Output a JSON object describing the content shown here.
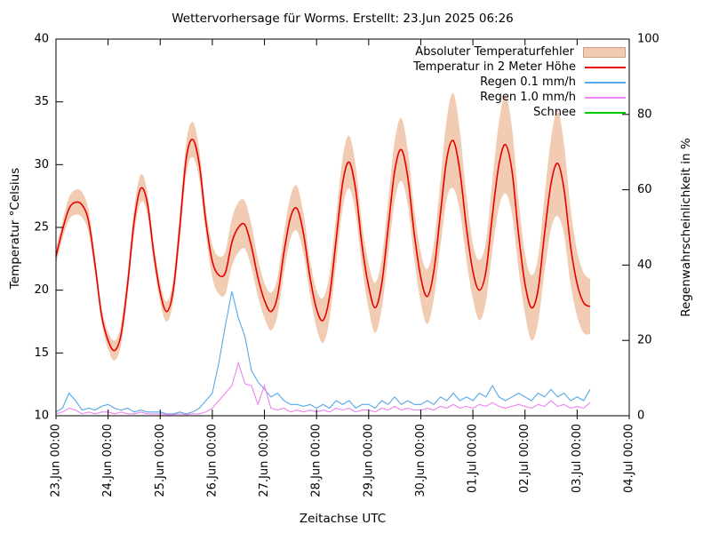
{
  "chart_data": {
    "type": "line",
    "title": "Wettervorhersage für Worms. Erstellt: 23.Jun 2025 06:26",
    "xlabel": "Zeitachse UTC",
    "ylabel_left": "Temperatur °Celsius",
    "ylabel_right": "Regenwahrscheinlichkeit in %",
    "ylim_left": [
      10,
      40
    ],
    "ylim_right": [
      0,
      100
    ],
    "y_ticks_left": [
      10,
      15,
      20,
      25,
      30,
      35,
      40
    ],
    "y_ticks_right": [
      0,
      20,
      40,
      60,
      80,
      100
    ],
    "x_tick_labels": [
      "23.Jun 00:00",
      "24.Jun 00:00",
      "25.Jun 00:00",
      "26.Jun 00:00",
      "27.Jun 00:00",
      "28.Jun 00:00",
      "29.Jun 00:00",
      "30.Jun 00:00",
      "01.Jul 00:00",
      "02.Jul 00:00",
      "03.Jul 00:00",
      "04.Jul 00:00"
    ],
    "x_span_days": 11,
    "step_hours": 3,
    "grid": "off",
    "legend_position": "top-right-inside",
    "legend": [
      "Absoluter Temperaturfehler",
      "Temperatur in 2 Meter Höhe",
      "Regen 0.1 mm/h",
      "Regen 1.0 mm/h",
      "Schnee"
    ],
    "series": {
      "band": {
        "label": "Absoluter Temperaturfehler",
        "fill": "#f2cbb3",
        "border": "#cf9f7f",
        "err_values": [
          0.6,
          0.7,
          0.9,
          1.0,
          1.0,
          0.9,
          0.7,
          0.6,
          0.7,
          0.8,
          0.8,
          0.9,
          1.0,
          1.1,
          0.9,
          0.8,
          0.8,
          0.8,
          0.9,
          1.1,
          1.3,
          1.4,
          1.2,
          1.0,
          1.3,
          1.5,
          1.7,
          1.9,
          2.0,
          1.9,
          1.7,
          1.5,
          1.4,
          1.5,
          1.5,
          1.6,
          1.7,
          1.8,
          1.6,
          1.4,
          1.5,
          1.8,
          1.8,
          1.9,
          2.0,
          2.1,
          1.9,
          1.7,
          1.8,
          2.0,
          2.0,
          2.2,
          2.4,
          2.5,
          2.2,
          2.0,
          2.0,
          2.2,
          2.2,
          2.6,
          3.2,
          3.8,
          3.2,
          2.6,
          2.2,
          2.4,
          2.4,
          2.8,
          3.4,
          3.9,
          3.4,
          2.8,
          2.4,
          2.6,
          2.6,
          3.0,
          3.6,
          4.2,
          3.6,
          3.0,
          2.6,
          2.4,
          2.2
        ]
      },
      "temperature": {
        "label": "Temperatur in 2 Meter Höhe",
        "color": "#e60000",
        "unit": "°C",
        "values": [
          22.7,
          24.8,
          26.5,
          27.0,
          26.8,
          25.5,
          22.0,
          18.0,
          16.0,
          15.2,
          16.5,
          20.5,
          25.5,
          28.1,
          27.0,
          23.0,
          19.8,
          18.3,
          20.0,
          25.0,
          30.5,
          32.0,
          30.0,
          25.5,
          22.3,
          21.2,
          21.4,
          23.8,
          25.0,
          25.2,
          23.5,
          21.0,
          19.2,
          18.3,
          19.5,
          23.0,
          25.8,
          26.5,
          24.5,
          21.0,
          18.5,
          17.6,
          19.5,
          24.0,
          28.5,
          30.2,
          28.0,
          23.5,
          20.3,
          18.6,
          20.5,
          25.0,
          29.5,
          31.2,
          29.0,
          24.5,
          21.0,
          19.5,
          21.5,
          26.0,
          30.5,
          31.9,
          29.5,
          25.0,
          21.5,
          20.0,
          21.5,
          26.0,
          30.0,
          31.6,
          29.5,
          24.5,
          20.5,
          18.6,
          20.0,
          24.5,
          28.5,
          30.1,
          28.0,
          23.5,
          20.5,
          19.0,
          18.7
        ]
      },
      "rain01": {
        "label": "Regen 0.1 mm/h",
        "color": "#54a8e8",
        "axis": "right",
        "unit": "%",
        "values_pct": [
          1,
          2,
          6,
          4,
          1.5,
          2,
          1.5,
          2.5,
          3,
          2,
          1.5,
          2,
          1,
          1.5,
          1,
          1,
          1,
          0.5,
          0.5,
          1,
          0.5,
          1,
          2,
          4,
          6,
          14,
          24,
          33,
          26,
          21,
          12,
          9,
          7,
          5,
          6,
          4,
          3,
          3,
          2.5,
          3,
          2,
          3,
          2,
          4,
          3,
          4,
          2,
          3,
          3,
          2,
          4,
          3,
          5,
          3,
          4,
          3,
          3,
          4,
          3,
          5,
          4,
          6,
          4,
          5,
          4,
          6,
          5,
          8,
          5,
          4,
          5,
          6,
          5,
          4,
          6,
          5,
          7,
          5,
          6,
          4,
          5,
          4,
          7
        ]
      },
      "rain10": {
        "label": "Regen 1.0 mm/h",
        "color": "#ee82ee",
        "axis": "right",
        "unit": "%",
        "values_pct": [
          0.5,
          1,
          2,
          1.5,
          0.5,
          1,
          0.5,
          1,
          1,
          0.5,
          1,
          0.5,
          0.5,
          1,
          0.5,
          0.5,
          0.5,
          0.3,
          0.3,
          0.5,
          0.3,
          0.5,
          0.5,
          1,
          2,
          4,
          6,
          8,
          14,
          8.5,
          8,
          3,
          8,
          2,
          1.5,
          2,
          1,
          1.5,
          1,
          1.5,
          1,
          1.5,
          1,
          2,
          1.5,
          2,
          1,
          1.5,
          1.5,
          1,
          2,
          1.5,
          2.5,
          1.5,
          2,
          1.5,
          1.5,
          2,
          1.5,
          2.5,
          2,
          3,
          2,
          2.5,
          2,
          3,
          2.5,
          3.5,
          2.5,
          2,
          2.5,
          3,
          2.5,
          2,
          3,
          2.5,
          4,
          2.5,
          3,
          2,
          2.5,
          2,
          3.5
        ]
      },
      "snow": {
        "label": "Schnee",
        "color": "#00cc00",
        "axis": "right",
        "unit": "%",
        "constant_pct": 0
      }
    }
  }
}
